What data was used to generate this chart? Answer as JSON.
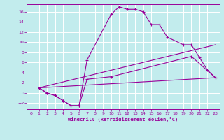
{
  "xlabel": "Windchill (Refroidissement éolien,°C)",
  "background_color": "#c2eced",
  "grid_color": "#ffffff",
  "line_color": "#990099",
  "xlim": [
    -0.5,
    23.5
  ],
  "ylim": [
    -3.2,
    17.5
  ],
  "xticks": [
    0,
    1,
    2,
    3,
    4,
    5,
    6,
    7,
    8,
    9,
    10,
    11,
    12,
    13,
    14,
    15,
    16,
    17,
    18,
    19,
    20,
    21,
    22,
    23
  ],
  "yticks": [
    -2,
    0,
    2,
    4,
    6,
    8,
    10,
    12,
    14,
    16
  ],
  "line1_x": [
    1,
    2,
    3,
    4,
    5,
    6,
    7,
    10,
    11,
    12,
    13,
    14,
    15,
    16,
    17,
    19,
    20,
    21,
    22,
    23
  ],
  "line1_y": [
    1,
    0,
    -0.5,
    -1.5,
    -2.5,
    -2.5,
    6.5,
    15.5,
    17,
    16.5,
    16.5,
    16,
    13.5,
    13.5,
    11,
    9.5,
    9.5,
    7,
    4.5,
    3
  ],
  "line2_x": [
    1,
    2,
    3,
    4,
    5,
    6,
    7,
    10,
    20,
    23
  ],
  "line2_y": [
    1,
    0,
    -0.5,
    -1.5,
    -2.5,
    -2.5,
    2.7,
    3.2,
    7.2,
    3
  ],
  "line3_x": [
    1,
    23
  ],
  "line3_y": [
    1,
    3.0
  ],
  "line4_x": [
    1,
    23
  ],
  "line4_y": [
    1,
    9.5
  ]
}
